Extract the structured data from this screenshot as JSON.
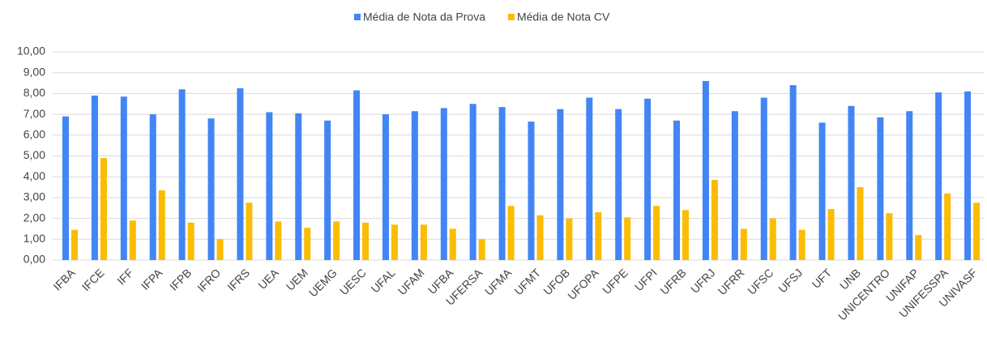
{
  "chart_data": {
    "type": "bar",
    "categories": [
      "IFBA",
      "IFCE",
      "IFF",
      "IFPA",
      "IFPB",
      "IFRO",
      "IFRS",
      "UEA",
      "UEM",
      "UEMG",
      "UESC",
      "UFAL",
      "UFAM",
      "UFBA",
      "UFERSA",
      "UFMA",
      "UFMT",
      "UFOB",
      "UFOPA",
      "UFPE",
      "UFPI",
      "UFRB",
      "UFRJ",
      "UFRR",
      "UFSC",
      "UFSJ",
      "UFT",
      "UNB",
      "UNICENTRO",
      "UNIFAP",
      "UNIFESSPA",
      "UNIVASF"
    ],
    "series": [
      {
        "name": "Média de Nota da Prova",
        "color": "#4285f4",
        "values": [
          6.9,
          7.9,
          7.85,
          7.0,
          8.2,
          6.8,
          8.25,
          7.1,
          7.05,
          6.7,
          8.15,
          7.0,
          7.15,
          7.3,
          7.5,
          7.35,
          6.65,
          7.25,
          7.8,
          7.25,
          7.75,
          6.7,
          8.6,
          7.15,
          7.8,
          8.4,
          6.6,
          7.4,
          6.85,
          7.15,
          8.05,
          8.1
        ]
      },
      {
        "name": "Média de Nota CV",
        "color": "#fbbc04",
        "values": [
          1.45,
          4.9,
          1.9,
          3.35,
          1.8,
          1.0,
          2.75,
          1.85,
          1.55,
          1.85,
          1.8,
          1.7,
          1.7,
          1.5,
          1.0,
          2.6,
          2.15,
          2.0,
          2.3,
          2.05,
          2.6,
          2.4,
          3.85,
          1.5,
          2.0,
          1.45,
          2.45,
          3.5,
          2.25,
          1.2,
          3.2,
          2.75
        ]
      }
    ],
    "ylim": [
      0,
      10
    ],
    "yticks": [
      {
        "value": 0,
        "label": "0,00"
      },
      {
        "value": 1,
        "label": "1,00"
      },
      {
        "value": 2,
        "label": "2,00"
      },
      {
        "value": 3,
        "label": "3,00"
      },
      {
        "value": 4,
        "label": "4,00"
      },
      {
        "value": 5,
        "label": "5,00"
      },
      {
        "value": 6,
        "label": "6,00"
      },
      {
        "value": 7,
        "label": "7,00"
      },
      {
        "value": 8,
        "label": "8,00"
      },
      {
        "value": 9,
        "label": "9,00"
      },
      {
        "value": 10,
        "label": "10,00"
      }
    ],
    "grid": true,
    "legend": "top"
  }
}
